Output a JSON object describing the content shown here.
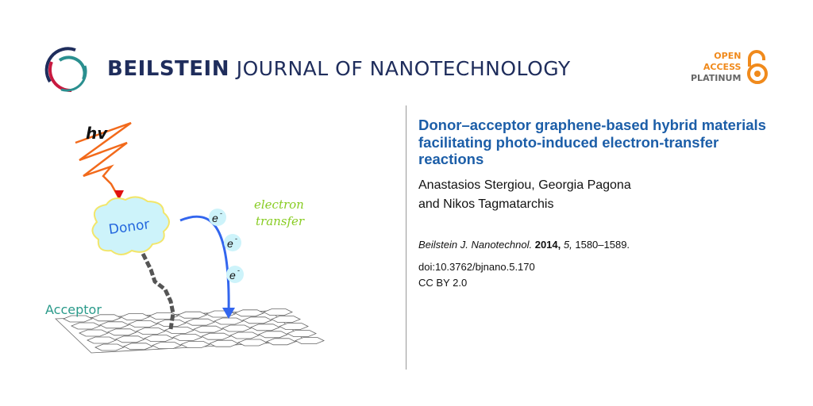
{
  "header": {
    "journal_bold": "BEILSTEIN",
    "journal_rest": "JOURNAL OF NANOTECHNOLOGY",
    "open_access": [
      "OPEN",
      "ACCESS",
      "PLATINUM"
    ]
  },
  "figure": {
    "hv": "hv",
    "donor": "Donor",
    "acceptor": "Acceptor",
    "electron_transfer": [
      "electron",
      "transfer"
    ],
    "electron": "e",
    "charge": "-"
  },
  "article": {
    "title": "Donor–acceptor graphene-based hybrid materials facilitating photo-induced electron-transfer reactions",
    "authors_line1": "Anastasios Stergiou, Georgia Pagona",
    "authors_line2": "and Nikos Tagmatarchis",
    "citation": {
      "journal": "Beilstein J. Nanotechnol.",
      "year": "2014,",
      "volume": "5,",
      "pages": "1580–1589."
    },
    "doi": "doi:10.3762/bjnano.5.170",
    "license": "CC BY 2.0"
  },
  "colors": {
    "title": "#1c5ea8",
    "brand_navy": "#1f2d5c",
    "logo_red": "#c8193f",
    "logo_teal": "#2a8f8f",
    "open_access_orange": "#f08a1c"
  }
}
